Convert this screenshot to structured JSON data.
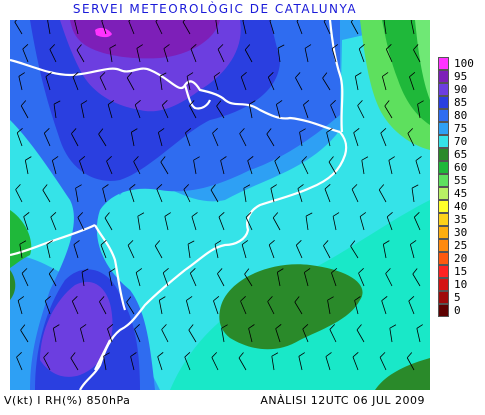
{
  "header": {
    "title": "SERVEI METEOROLÒGIC DE CATALUNYA",
    "title_color": "#1a1ad8"
  },
  "footer": {
    "left": "V(kt) I RH(%) 850hPa",
    "right": "ANÀLISI 12UTC 06 JUL 2009"
  },
  "legend": {
    "items": [
      {
        "label": "100",
        "color": "#ff33ff"
      },
      {
        "label": "95",
        "color": "#7d1fb8"
      },
      {
        "label": "90",
        "color": "#6c3ee0"
      },
      {
        "label": "85",
        "color": "#2a3fe0"
      },
      {
        "label": "80",
        "color": "#2f6cf0"
      },
      {
        "label": "75",
        "color": "#2ea0f4"
      },
      {
        "label": "70",
        "color": "#35e3e8"
      },
      {
        "label": "65",
        "color": "#2a8a2a"
      },
      {
        "label": "60",
        "color": "#1fb83a"
      },
      {
        "label": "55",
        "color": "#5ee05e"
      },
      {
        "label": "45",
        "color": "#b8f064"
      },
      {
        "label": "40",
        "color": "#ffff2a"
      },
      {
        "label": "35",
        "color": "#ffd21a"
      },
      {
        "label": "30",
        "color": "#ffae0f"
      },
      {
        "label": "25",
        "color": "#ff8a0f"
      },
      {
        "label": "20",
        "color": "#ff5a0f"
      },
      {
        "label": "15",
        "color": "#ff2222"
      },
      {
        "label": "10",
        "color": "#d41414"
      },
      {
        "label": "5",
        "color": "#a00c0c"
      },
      {
        "label": "0",
        "color": "#5e0202"
      }
    ]
  },
  "map": {
    "field": "relative humidity 850hPa",
    "colors": {
      "background": "#2ea0f4",
      "coast": "#ffffff",
      "barb": "#000000"
    }
  }
}
